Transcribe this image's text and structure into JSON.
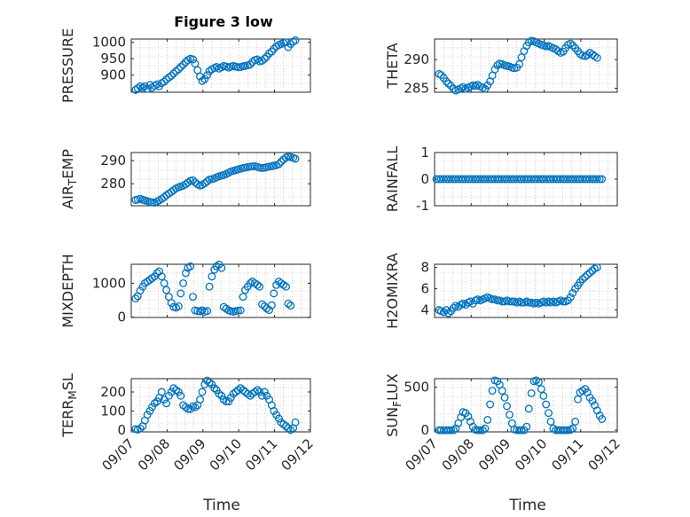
{
  "figure": {
    "title": "Figure 3 low",
    "marker_color": "#0072BD"
  },
  "x_axis": {
    "label": "Time",
    "range": [
      0,
      5
    ],
    "ticks": [
      0,
      1,
      2,
      3,
      4,
      5
    ],
    "tick_labels": [
      "09/07",
      "09/08",
      "09/09",
      "09/10",
      "09/11",
      "09/12"
    ]
  },
  "chart_data": [
    {
      "type": "scatter",
      "ylabel": "PRESSURE",
      "title": "Figure 3 low",
      "ylim": [
        848,
        1010
      ],
      "yticks": [
        900,
        950,
        1000
      ],
      "ytick_labels": [
        "900",
        "950",
        "1000"
      ],
      "x": [
        0.12,
        0.18,
        0.25,
        0.32,
        0.38,
        0.45,
        0.52,
        0.58,
        0.65,
        0.72,
        0.78,
        0.85,
        0.92,
        0.98,
        1.05,
        1.12,
        1.18,
        1.25,
        1.32,
        1.38,
        1.45,
        1.52,
        1.58,
        1.65,
        1.72,
        1.78,
        1.85,
        1.92,
        1.98,
        2.05,
        2.12,
        2.18,
        2.25,
        2.32,
        2.38,
        2.45,
        2.52,
        2.58,
        2.65,
        2.72,
        2.78,
        2.85,
        2.92,
        2.98,
        3.05,
        3.12,
        3.18,
        3.25,
        3.32,
        3.38,
        3.45,
        3.52,
        3.58,
        3.65,
        3.72,
        3.78,
        3.85,
        3.92,
        3.98,
        4.05,
        4.12,
        4.18,
        4.25,
        4.32,
        4.38,
        4.45,
        4.52,
        4.58
      ],
      "y": [
        855,
        860,
        866,
        862,
        866,
        858,
        870,
        862,
        868,
        872,
        866,
        876,
        880,
        887,
        893,
        898,
        905,
        912,
        918,
        925,
        932,
        940,
        946,
        950,
        948,
        935,
        915,
        896,
        882,
        888,
        900,
        912,
        918,
        922,
        925,
        920,
        924,
        928,
        926,
        923,
        926,
        928,
        926,
        924,
        925,
        927,
        928,
        930,
        932,
        940,
        946,
        948,
        942,
        944,
        950,
        956,
        966,
        972,
        980,
        988,
        992,
        995,
        998,
        1000,
        985,
        995,
        1002,
        1006
      ]
    },
    {
      "type": "scatter",
      "ylabel": "THETA",
      "ylim": [
        284.3,
        293.6
      ],
      "yticks": [
        285,
        290
      ],
      "ytick_labels": [
        "285",
        "290"
      ],
      "x": [
        0.12,
        0.18,
        0.25,
        0.32,
        0.38,
        0.45,
        0.52,
        0.58,
        0.65,
        0.72,
        0.78,
        0.85,
        0.92,
        0.98,
        1.05,
        1.12,
        1.18,
        1.25,
        1.32,
        1.38,
        1.45,
        1.52,
        1.58,
        1.65,
        1.72,
        1.78,
        1.85,
        1.92,
        1.98,
        2.05,
        2.12,
        2.18,
        2.25,
        2.32,
        2.38,
        2.45,
        2.52,
        2.58,
        2.65,
        2.72,
        2.78,
        2.85,
        2.92,
        2.98,
        3.05,
        3.12,
        3.18,
        3.25,
        3.32,
        3.38,
        3.45,
        3.52,
        3.58,
        3.65,
        3.72,
        3.78,
        3.85,
        3.92,
        3.98,
        4.05,
        4.12,
        4.18,
        4.25,
        4.32,
        4.38,
        4.45
      ],
      "y": [
        287.5,
        287.3,
        286.8,
        286.2,
        285.8,
        285.4,
        284.9,
        284.6,
        284.8,
        285.0,
        285.2,
        284.9,
        285.1,
        285.3,
        285.5,
        285.4,
        285.6,
        285.3,
        285.1,
        284.9,
        285.5,
        286.2,
        287.2,
        288.3,
        289.0,
        289.3,
        289.2,
        289.0,
        288.9,
        288.8,
        288.6,
        288.5,
        288.6,
        289.2,
        290.4,
        291.5,
        292.4,
        293.0,
        293.3,
        293.2,
        293.0,
        292.8,
        292.6,
        292.5,
        292.3,
        292.4,
        292.2,
        292.0,
        291.8,
        291.5,
        291.2,
        291.4,
        292.0,
        292.6,
        292.8,
        292.5,
        292.0,
        291.5,
        291.0,
        290.7,
        290.6,
        290.8,
        291.2,
        290.9,
        290.6,
        290.3
      ]
    },
    {
      "type": "scatter",
      "ylabel": "AIR_TEMP",
      "ylim": [
        270.5,
        293.5
      ],
      "yticks": [
        280,
        290
      ],
      "ytick_labels": [
        "280",
        "290"
      ],
      "x": [
        0.12,
        0.18,
        0.25,
        0.32,
        0.38,
        0.45,
        0.52,
        0.58,
        0.65,
        0.72,
        0.78,
        0.85,
        0.92,
        0.98,
        1.05,
        1.12,
        1.18,
        1.25,
        1.32,
        1.38,
        1.45,
        1.52,
        1.58,
        1.65,
        1.72,
        1.78,
        1.85,
        1.92,
        1.98,
        2.05,
        2.12,
        2.18,
        2.25,
        2.32,
        2.38,
        2.45,
        2.52,
        2.58,
        2.65,
        2.72,
        2.78,
        2.85,
        2.92,
        2.98,
        3.05,
        3.12,
        3.18,
        3.25,
        3.32,
        3.38,
        3.45,
        3.52,
        3.58,
        3.65,
        3.72,
        3.78,
        3.85,
        3.92,
        3.98,
        4.05,
        4.12,
        4.18,
        4.25,
        4.32,
        4.38,
        4.45,
        4.52,
        4.58
      ],
      "y": [
        273.0,
        273.2,
        273.5,
        273.1,
        272.8,
        272.5,
        272.2,
        272.0,
        271.8,
        272.3,
        272.8,
        273.5,
        274.2,
        275.0,
        275.8,
        276.5,
        277.2,
        278.0,
        278.5,
        278.8,
        279.2,
        279.8,
        280.5,
        281.3,
        281.5,
        280.6,
        279.8,
        279.2,
        279.5,
        280.2,
        281.0,
        281.8,
        282.0,
        282.3,
        282.8,
        283.2,
        283.5,
        283.8,
        284.2,
        284.8,
        285.3,
        285.6,
        285.9,
        286.2,
        286.5,
        286.8,
        287.0,
        287.2,
        287.4,
        287.5,
        287.6,
        287.3,
        287.0,
        286.8,
        286.9,
        287.2,
        287.4,
        287.6,
        287.8,
        288.0,
        288.5,
        289.5,
        290.5,
        291.3,
        291.8,
        291.5,
        291.2,
        290.8
      ]
    },
    {
      "type": "scatter",
      "ylabel": "RAINFALL",
      "ylim": [
        -1,
        1
      ],
      "yticks": [
        -1,
        0,
        1
      ],
      "ytick_labels": [
        "-1",
        "0",
        "1"
      ],
      "x": [
        0.05,
        0.12,
        0.18,
        0.25,
        0.32,
        0.38,
        0.45,
        0.52,
        0.58,
        0.65,
        0.72,
        0.78,
        0.85,
        0.92,
        0.98,
        1.05,
        1.12,
        1.18,
        1.25,
        1.32,
        1.38,
        1.45,
        1.52,
        1.58,
        1.65,
        1.72,
        1.78,
        1.85,
        1.92,
        1.98,
        2.05,
        2.12,
        2.18,
        2.25,
        2.32,
        2.38,
        2.45,
        2.52,
        2.58,
        2.65,
        2.72,
        2.78,
        2.85,
        2.92,
        2.98,
        3.05,
        3.12,
        3.18,
        3.25,
        3.32,
        3.38,
        3.45,
        3.52,
        3.58,
        3.65,
        3.72,
        3.78,
        3.85,
        3.92,
        3.98,
        4.05,
        4.12,
        4.18,
        4.25,
        4.32,
        4.38,
        4.45,
        4.52,
        4.58
      ],
      "y": [
        0,
        0,
        0,
        0,
        0,
        0,
        0,
        0,
        0,
        0,
        0,
        0,
        0,
        0,
        0,
        0,
        0,
        0,
        0,
        0,
        0,
        0,
        0,
        0,
        0,
        0,
        0,
        0,
        0,
        0,
        0,
        0,
        0,
        0,
        0,
        0,
        0,
        0,
        0,
        0,
        0,
        0,
        0,
        0,
        0,
        0,
        0,
        0,
        0,
        0,
        0,
        0,
        0,
        0,
        0,
        0,
        0,
        0,
        0,
        0,
        0,
        0,
        0,
        0,
        0,
        0,
        0,
        0,
        0
      ]
    },
    {
      "type": "scatter",
      "ylabel": "MIXDEPTH",
      "ylim": [
        -10,
        1560
      ],
      "yticks": [
        0,
        1000
      ],
      "ytick_labels": [
        "0",
        "1000"
      ],
      "x": [
        0.12,
        0.18,
        0.25,
        0.32,
        0.38,
        0.45,
        0.52,
        0.58,
        0.65,
        0.72,
        0.78,
        0.85,
        0.92,
        0.98,
        1.05,
        1.12,
        1.18,
        1.25,
        1.32,
        1.38,
        1.45,
        1.52,
        1.58,
        1.65,
        1.72,
        1.78,
        1.85,
        1.92,
        1.98,
        2.05,
        2.12,
        2.18,
        2.25,
        2.32,
        2.38,
        2.45,
        2.52,
        2.58,
        2.65,
        2.72,
        2.78,
        2.85,
        2.92,
        2.98,
        3.05,
        3.12,
        3.18,
        3.25,
        3.32,
        3.38,
        3.45,
        3.52,
        3.58,
        3.65,
        3.72,
        3.78,
        3.85,
        3.92,
        3.98,
        4.05,
        4.12,
        4.18,
        4.25,
        4.32,
        4.38,
        4.45
      ],
      "y": [
        550,
        620,
        780,
        900,
        1000,
        1050,
        1100,
        1150,
        1200,
        1300,
        1350,
        1200,
        1000,
        800,
        600,
        420,
        300,
        280,
        320,
        700,
        1000,
        1300,
        1450,
        1500,
        600,
        200,
        180,
        170,
        200,
        160,
        180,
        900,
        1200,
        1400,
        1500,
        1550,
        1450,
        300,
        250,
        200,
        180,
        160,
        180,
        190,
        200,
        600,
        800,
        900,
        1000,
        1050,
        1000,
        950,
        900,
        380,
        320,
        260,
        210,
        350,
        700,
        950,
        1050,
        1000,
        950,
        900,
        400,
        340
      ]
    },
    {
      "type": "scatter",
      "ylabel": "H2OMIXRA",
      "ylim": [
        3.3,
        8.3
      ],
      "yticks": [
        4,
        6,
        8
      ],
      "ytick_labels": [
        "4",
        "6",
        "8"
      ],
      "x": [
        0.12,
        0.18,
        0.25,
        0.32,
        0.38,
        0.45,
        0.52,
        0.58,
        0.65,
        0.72,
        0.78,
        0.85,
        0.92,
        0.98,
        1.05,
        1.12,
        1.18,
        1.25,
        1.32,
        1.38,
        1.45,
        1.52,
        1.58,
        1.65,
        1.72,
        1.78,
        1.85,
        1.92,
        1.98,
        2.05,
        2.12,
        2.18,
        2.25,
        2.32,
        2.38,
        2.45,
        2.52,
        2.58,
        2.65,
        2.72,
        2.78,
        2.85,
        2.92,
        2.98,
        3.05,
        3.12,
        3.18,
        3.25,
        3.32,
        3.38,
        3.45,
        3.52,
        3.58,
        3.65,
        3.72,
        3.78,
        3.85,
        3.92,
        3.98,
        4.05,
        4.12,
        4.18,
        4.25,
        4.32,
        4.38,
        4.45
      ],
      "y": [
        4.0,
        3.9,
        3.8,
        4.0,
        3.7,
        3.9,
        4.2,
        4.4,
        4.3,
        4.5,
        4.6,
        4.5,
        4.7,
        4.8,
        4.6,
        4.9,
        5.0,
        4.9,
        5.0,
        5.1,
        5.2,
        5.1,
        5.0,
        5.0,
        4.9,
        4.9,
        4.8,
        4.8,
        4.9,
        4.8,
        4.8,
        4.8,
        4.7,
        4.8,
        4.7,
        4.7,
        4.8,
        4.7,
        4.7,
        4.6,
        4.7,
        4.6,
        4.7,
        4.8,
        4.7,
        4.8,
        4.7,
        4.8,
        4.7,
        4.8,
        4.9,
        4.8,
        4.8,
        4.9,
        5.2,
        5.6,
        6.0,
        6.3,
        6.6,
        6.9,
        7.1,
        7.3,
        7.5,
        7.7,
        7.9,
        8.0
      ]
    },
    {
      "type": "scatter",
      "ylabel": "TERR_MSL",
      "ylim": [
        -10,
        270
      ],
      "yticks": [
        0,
        100,
        200
      ],
      "ytick_labels": [
        "0",
        "100",
        "200"
      ],
      "x": [
        0.12,
        0.18,
        0.25,
        0.32,
        0.38,
        0.45,
        0.52,
        0.58,
        0.65,
        0.72,
        0.78,
        0.85,
        0.92,
        0.98,
        1.05,
        1.12,
        1.18,
        1.25,
        1.32,
        1.38,
        1.45,
        1.52,
        1.58,
        1.65,
        1.72,
        1.78,
        1.85,
        1.92,
        1.98,
        2.05,
        2.12,
        2.18,
        2.25,
        2.32,
        2.38,
        2.45,
        2.52,
        2.58,
        2.65,
        2.72,
        2.78,
        2.85,
        2.92,
        2.98,
        3.05,
        3.12,
        3.18,
        3.25,
        3.32,
        3.38,
        3.45,
        3.52,
        3.58,
        3.65,
        3.72,
        3.78,
        3.85,
        3.92,
        3.98,
        4.05,
        4.12,
        4.18,
        4.25,
        4.32,
        4.38,
        4.45,
        4.52,
        4.58
      ],
      "y": [
        5,
        2,
        8,
        20,
        50,
        80,
        100,
        120,
        140,
        150,
        170,
        200,
        160,
        140,
        180,
        200,
        220,
        210,
        200,
        180,
        130,
        120,
        110,
        110,
        125,
        120,
        130,
        160,
        200,
        240,
        260,
        250,
        240,
        220,
        210,
        190,
        180,
        160,
        150,
        150,
        170,
        190,
        200,
        210,
        220,
        210,
        200,
        190,
        180,
        190,
        200,
        210,
        200,
        180,
        200,
        180,
        160,
        130,
        100,
        80,
        60,
        40,
        30,
        20,
        10,
        0,
        10,
        40
      ]
    },
    {
      "type": "scatter",
      "ylabel": "SUN_FLUX",
      "ylim": [
        -20,
        600
      ],
      "yticks": [
        0,
        500
      ],
      "ytick_labels": [
        "0",
        "500"
      ],
      "x": [
        0.12,
        0.18,
        0.25,
        0.32,
        0.38,
        0.45,
        0.52,
        0.58,
        0.65,
        0.72,
        0.78,
        0.85,
        0.92,
        0.98,
        1.05,
        1.12,
        1.18,
        1.25,
        1.32,
        1.38,
        1.45,
        1.52,
        1.58,
        1.65,
        1.72,
        1.78,
        1.85,
        1.92,
        1.98,
        2.05,
        2.12,
        2.18,
        2.25,
        2.32,
        2.38,
        2.45,
        2.52,
        2.58,
        2.65,
        2.72,
        2.78,
        2.85,
        2.92,
        2.98,
        3.05,
        3.12,
        3.18,
        3.25,
        3.32,
        3.38,
        3.45,
        3.52,
        3.58,
        3.65,
        3.72,
        3.78,
        3.85,
        3.92,
        3.98,
        4.05,
        4.12,
        4.18,
        4.25,
        4.32,
        4.38,
        4.45,
        4.52,
        4.58
      ],
      "y": [
        0,
        0,
        0,
        0,
        0,
        0,
        0,
        20,
        80,
        150,
        210,
        200,
        160,
        100,
        40,
        5,
        0,
        0,
        0,
        20,
        120,
        300,
        460,
        580,
        570,
        530,
        460,
        380,
        280,
        180,
        80,
        10,
        0,
        0,
        0,
        0,
        40,
        250,
        430,
        570,
        580,
        560,
        480,
        400,
        300,
        200,
        100,
        20,
        0,
        0,
        0,
        0,
        0,
        0,
        5,
        20,
        100,
        360,
        440,
        460,
        480,
        440,
        380,
        340,
        290,
        230,
        170,
        130
      ]
    }
  ]
}
